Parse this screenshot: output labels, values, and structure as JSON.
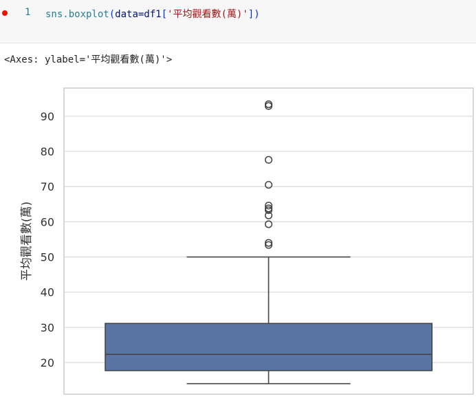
{
  "cell": {
    "line_number": "1",
    "code_fn": "sns.boxplot",
    "code_open": "(",
    "code_arg": "data=df1",
    "code_bracket_open": "[",
    "code_str": "'平均觀看數(萬)'",
    "code_bracket_close": "]",
    "code_close": ")"
  },
  "output": {
    "repr": "<Axes: ylabel='平均觀看數(萬)'>"
  },
  "chart_data": {
    "type": "box",
    "ylabel": "平均觀看數(萬)",
    "ylim": [
      11,
      98
    ],
    "yticks": [
      20,
      30,
      40,
      50,
      60,
      70,
      80,
      90
    ],
    "grid": true,
    "box_color": "#5975a4",
    "box": {
      "whisker_low": 14,
      "q1": 17.7,
      "median": 22.3,
      "q3": 31.1,
      "whisker_high": 50
    },
    "outliers": [
      53.4,
      54.0,
      59.3,
      61.8,
      63.3,
      63.8,
      64.6,
      70.5,
      77.6,
      92.9,
      93.4
    ]
  }
}
